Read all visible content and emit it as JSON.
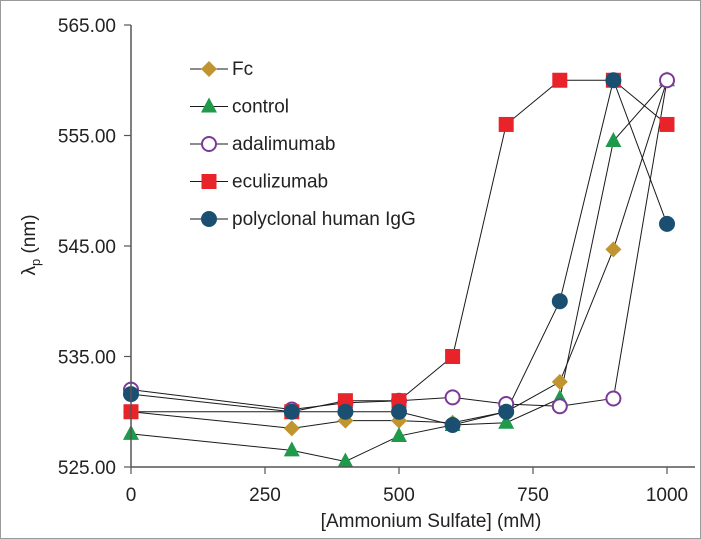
{
  "chart_data": {
    "type": "line",
    "title": "",
    "xlabel": "[Ammonium Sulfate] (mM)",
    "ylabel": "λ",
    "ylabel_sub": "p",
    "ylabel_unit": " (nm)",
    "xlim": [
      0,
      1000
    ],
    "ylim": [
      525,
      565
    ],
    "xticks": [
      0,
      250,
      500,
      750,
      1000
    ],
    "xtick_labels": [
      "0",
      "250",
      "500",
      "750",
      "1000"
    ],
    "yticks": [
      525,
      535,
      545,
      555,
      565
    ],
    "ytick_labels": [
      "525.00",
      "535.00",
      "545.00",
      "555.00",
      "565.00"
    ],
    "grid": false,
    "legend_position": "top-left",
    "series": [
      {
        "name": "Fc",
        "marker": "diamond",
        "color": "#c09530",
        "x": [
          0,
          300,
          400,
          500,
          600,
          700,
          800,
          900,
          1000
        ],
        "y": [
          530.0,
          528.5,
          529.2,
          529.2,
          529.0,
          530.0,
          532.7,
          544.7,
          560.0
        ]
      },
      {
        "name": "control",
        "marker": "triangle",
        "color": "#1f9a4a",
        "x": [
          0,
          300,
          400,
          500,
          600,
          700,
          800,
          900,
          1000
        ],
        "y": [
          528.0,
          526.5,
          525.5,
          527.8,
          528.8,
          529.0,
          531.2,
          554.5,
          560.0
        ]
      },
      {
        "name": "adalimumab",
        "marker": "open-circle",
        "color": "#7b3a96",
        "x": [
          0,
          300,
          400,
          500,
          600,
          700,
          800,
          900,
          1000
        ],
        "y": [
          532.0,
          530.2,
          530.8,
          531.0,
          531.3,
          530.7,
          530.5,
          531.2,
          560.0
        ]
      },
      {
        "name": "eculizumab",
        "marker": "square",
        "color": "#e8232a",
        "x": [
          0,
          300,
          400,
          500,
          600,
          700,
          800,
          900,
          1000
        ],
        "y": [
          530.0,
          530.0,
          531.0,
          531.0,
          535.0,
          556.0,
          560.0,
          560.0,
          556.0
        ]
      },
      {
        "name": "polyclonal human IgG",
        "marker": "circle",
        "color": "#1b4f72",
        "x": [
          0,
          300,
          400,
          500,
          600,
          700,
          800,
          900,
          1000
        ],
        "y": [
          531.6,
          530.0,
          530.0,
          530.0,
          528.8,
          530.0,
          540.0,
          560.0,
          547.0
        ]
      }
    ]
  }
}
